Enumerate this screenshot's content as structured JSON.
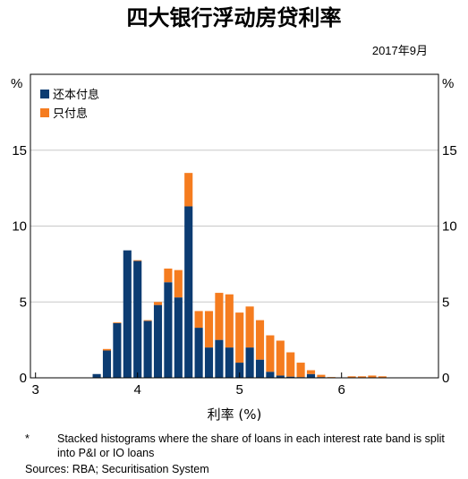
{
  "chart_data": {
    "type": "bar",
    "stacked": true,
    "title": "四大银行浮动房贷利率",
    "date": "2017年9月",
    "xlabel": "利率 (%)",
    "ylabel_left": "%",
    "ylabel_right": "%",
    "xlim": [
      2.95,
      6.95
    ],
    "ylim": [
      0,
      20
    ],
    "x_ticks": [
      3,
      4,
      5,
      6
    ],
    "y_ticks": [
      0,
      5,
      10,
      15
    ],
    "grid": true,
    "legend_position": "top-left",
    "bin_centers": [
      3.5,
      3.6,
      3.7,
      3.8,
      3.9,
      4.0,
      4.1,
      4.2,
      4.3,
      4.4,
      4.5,
      4.6,
      4.7,
      4.8,
      4.9,
      5.0,
      5.1,
      5.2,
      5.3,
      5.4,
      5.5,
      5.6,
      5.7,
      5.8,
      5.9,
      6.0,
      6.1,
      6.2,
      6.3,
      6.4,
      6.5
    ],
    "series": [
      {
        "name": "还本付息",
        "color": "#0c3c72",
        "values": [
          0,
          0.25,
          1.8,
          3.6,
          8.4,
          7.7,
          3.75,
          4.8,
          6.3,
          5.3,
          11.3,
          3.3,
          2.0,
          2.5,
          2.0,
          1.0,
          2.0,
          1.2,
          0.4,
          0.15,
          0.08,
          0.05,
          0.25,
          0.05,
          0,
          0,
          0,
          0,
          0,
          0,
          0
        ]
      },
      {
        "name": "只付息",
        "color": "#f57c1f",
        "values": [
          0,
          0,
          0.1,
          0.05,
          0,
          0.05,
          0.05,
          0.2,
          0.9,
          1.8,
          2.2,
          1.1,
          2.4,
          3.1,
          3.5,
          3.3,
          2.7,
          2.6,
          2.4,
          2.3,
          1.6,
          0.95,
          0.25,
          0.15,
          0.05,
          0,
          0.1,
          0.1,
          0.15,
          0.1,
          0
        ]
      }
    ]
  },
  "footnote_marker": "*",
  "footnote": "Stacked histograms where the share of loans in each interest rate band is split into P&I or IO loans",
  "sources": "Sources:   RBA; Securitisation System"
}
